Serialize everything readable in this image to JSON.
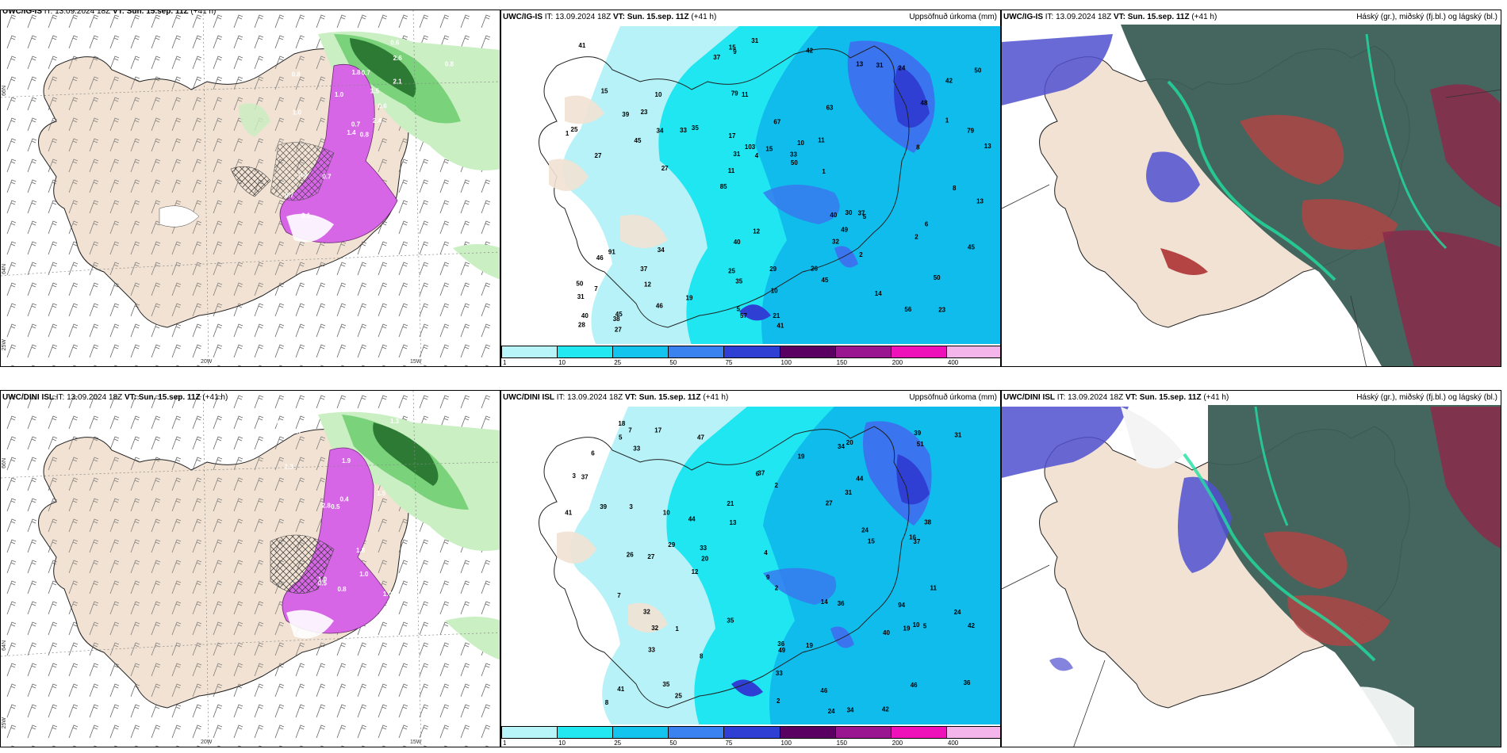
{
  "rows": [
    {
      "model": "UWC/IG-IS",
      "wind_panel": {
        "model": "UWC/IG-IS",
        "it": "IT: 13.09.2024 18Z",
        "vt": "VT: Sun. 15.sep. 11Z",
        "lead": "(+41 h)"
      },
      "precip_panel": {
        "model": "UWC/IG-IS",
        "it": "IT: 13.09.2024 18Z",
        "vt": "VT: Sun. 15.sep. 11Z",
        "lead": "(+41 h)",
        "title": "Uppsöfnuð úrkoma (mm)",
        "values": [
          "23",
          "27",
          "42",
          "85",
          "63",
          "45",
          "79",
          "67",
          "91",
          "35",
          "31",
          "12",
          "11",
          "10",
          "5",
          "15",
          "9",
          "13",
          "40",
          "1",
          "11",
          "25",
          "31",
          "10",
          "13",
          "34",
          "56",
          "50",
          "37",
          "41",
          "33",
          "45",
          "32",
          "46",
          "79",
          "33",
          "40",
          "35",
          "50",
          "46",
          "48",
          "50",
          "49",
          "45",
          "37",
          "27",
          "28",
          "29",
          "24",
          "31",
          "27",
          "25",
          "23",
          "31",
          "38",
          "42",
          "37",
          "103",
          "45",
          "40",
          "19",
          "30",
          "34",
          "50",
          "41",
          "39",
          "13",
          "17",
          "10",
          "15",
          "7",
          "1",
          "6",
          "5",
          "8",
          "12",
          "14",
          "21",
          "26",
          "15",
          "8",
          "11",
          "2",
          "4",
          "2",
          "1",
          "57"
        ]
      },
      "cloud_panel": {
        "model": "UWC/IG-IS",
        "it": "IT: 13.09.2024 18Z",
        "vt": "VT: Sun. 15.sep. 11Z",
        "lead": "(+41 h)",
        "title": "Háský (gr.), miðský (fj.bl.) og lágský (bl.)"
      }
    },
    {
      "model": "UWC/DINI ISL",
      "wind_panel": {
        "model": "UWC/DINI ISL",
        "it": "IT: 13.09.2024 18Z",
        "vt": "VT: Sun. 15.sep. 11Z",
        "lead": "(+41 h)"
      },
      "precip_panel": {
        "model": "UWC/DINI ISL",
        "it": "IT: 13.09.2024 18Z",
        "vt": "VT: Sun. 15.sep. 11Z",
        "lead": "(+41 h)",
        "title": "Uppsöfnuð úrkoma (mm)",
        "values": [
          "24",
          "42",
          "49",
          "41",
          "36",
          "44",
          "47",
          "44",
          "24",
          "37",
          "36",
          "51",
          "41",
          "24",
          "25",
          "33",
          "33",
          "35",
          "34",
          "37",
          "39",
          "94",
          "46",
          "26",
          "31",
          "27",
          "40",
          "35",
          "32",
          "29",
          "33",
          "38",
          "36",
          "46",
          "42",
          "27",
          "37",
          "39",
          "20",
          "18",
          "19",
          "31",
          "32",
          "17",
          "19",
          "14",
          "13",
          "33",
          "20",
          "34",
          "12",
          "15",
          "21",
          "10",
          "8",
          "11",
          "10",
          "5",
          "6",
          "5",
          "7",
          "4",
          "3",
          "2",
          "1",
          "6",
          "2",
          "3",
          "8",
          "2",
          "9",
          "7",
          "16",
          "19"
        ]
      },
      "cloud_panel": {
        "model": "UWC/DINI ISL",
        "it": "IT: 13.09.2024 18Z",
        "vt": "VT: Sun. 15.sep. 11Z",
        "lead": "(+41 h)",
        "title": "Háský (gr.), miðský (fj.bl.) og lágský (bl.)"
      }
    }
  ],
  "wind_values_top": [
    "0.8",
    "0.8",
    "0.7",
    "0.7",
    "0.6",
    "0.7",
    "0.6",
    "0.7",
    "2.6",
    "2.4",
    "2.1",
    "0.4",
    "1.0",
    "0.8",
    "1.4",
    "2.1",
    "2.1",
    "1.8",
    "1.5",
    "0.4",
    "1.0"
  ],
  "wind_values_bottom": [
    "0.8",
    "1.0",
    "1.0",
    "0.5",
    "0.6",
    "0.7",
    "2.8",
    "0.6",
    "0.5",
    "1.9",
    "0.6",
    "1.0",
    "0.4",
    "1.8",
    "1.3",
    "1.5",
    "1.3",
    "0.5",
    "0.5",
    "1.0"
  ],
  "axis_labels": {
    "lat_66": "66N",
    "lat_64": "64N",
    "lon_25": "25W",
    "lon_20": "20W",
    "lon_15": "15W"
  },
  "colorbar": {
    "ticks": [
      "1",
      "10",
      "25",
      "50",
      "75",
      "100",
      "150",
      "200",
      "400"
    ],
    "colors": [
      "#b8f5f8",
      "#22e8f2",
      "#12c4ee",
      "#3a82f0",
      "#2f3fd4",
      "#5a0062",
      "#9a1590",
      "#ee10b8",
      "#f4b6ea"
    ]
  },
  "colors": {
    "land": "#f1e2d3",
    "precip_light": "#b6f2f7",
    "precip_mid": "#20e6f2",
    "precip_high": "#10bcec",
    "precip_dark": "#3a74ee",
    "wind_green_light": "#c9efc2",
    "wind_green": "#7ad27a",
    "wind_green_dark": "#2c7a33",
    "wind_magenta": "#d666e6",
    "cloud_high": "#3a5e56",
    "cloud_mid": "#b44444",
    "cloud_low": "#5050d0"
  }
}
